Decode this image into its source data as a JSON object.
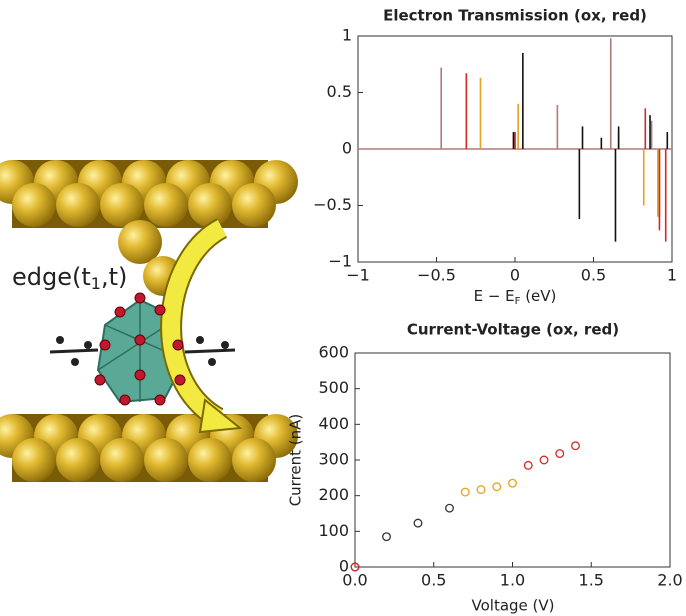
{
  "illustration_label": [
    "edge(t",
    "1",
    ",t)"
  ],
  "chart_data": [
    {
      "type": "spikes",
      "title": "Electron Transmission (ox, red)",
      "x_label": [
        "E − E",
        "F",
        " (eV)"
      ],
      "xlim": [
        -1,
        1
      ],
      "ylim": [
        -1,
        1
      ],
      "xticks": [
        {
          "value": -1,
          "label": "−1"
        },
        {
          "value": -0.5,
          "label": "−0.5"
        },
        0,
        0.5,
        1
      ],
      "yticks": [
        {
          "value": -1,
          "label": "−1"
        },
        {
          "value": -0.5,
          "label": "−0.5"
        },
        0,
        0.5,
        1
      ],
      "series": [
        {
          "color": "#b07a78",
          "x": [
            -0.47,
            0.0,
            0.27,
            0.61,
            0.66,
            0.87,
            0.92
          ],
          "values": [
            0.72,
            0.15,
            0.39,
            0.98,
            0.15,
            0.25,
            -0.6
          ]
        },
        {
          "color": "#d62728",
          "x": [
            -0.31,
            0.0,
            0.83,
            0.92,
            0.96
          ],
          "values": [
            0.67,
            0.15,
            0.36,
            -0.72,
            -0.82
          ]
        },
        {
          "color": "#e8a020",
          "x": [
            -0.22,
            0.02,
            0.82,
            0.91
          ],
          "values": [
            0.63,
            0.4,
            -0.5,
            -0.6
          ]
        },
        {
          "color": "#111111",
          "x": [
            -0.01,
            0.05,
            0.41,
            0.43,
            0.55,
            0.64,
            0.66,
            0.86,
            0.97
          ],
          "values": [
            0.15,
            0.85,
            -0.62,
            0.2,
            0.1,
            -0.82,
            0.2,
            0.3,
            0.15
          ]
        }
      ]
    },
    {
      "type": "scatter",
      "title": "Current-Voltage (ox, red)",
      "x_label": "Voltage (V)",
      "y_label": "Current (nA)",
      "xlim": [
        0,
        2
      ],
      "ylim": [
        0,
        600
      ],
      "xticks": [
        {
          "value": 0,
          "label": "0.0"
        },
        0.5,
        {
          "value": 1,
          "label": "1.0"
        },
        1.5,
        {
          "value": 2,
          "label": "2.0"
        }
      ],
      "yticks": [
        0,
        100,
        200,
        300,
        400,
        500,
        600
      ],
      "series": [
        {
          "color": "#333333",
          "x": [
            0,
            0.2,
            0.4,
            0.6
          ],
          "values": [
            0,
            85,
            123,
            165
          ]
        },
        {
          "color": "#e8a020",
          "x": [
            0.7,
            0.8,
            0.9,
            1.0
          ],
          "values": [
            210,
            217,
            225,
            235
          ]
        },
        {
          "color": "#d62728",
          "x": [
            0,
            1.1,
            1.2,
            1.3,
            1.4
          ],
          "values": [
            0,
            285,
            300,
            318,
            340
          ]
        }
      ]
    }
  ]
}
